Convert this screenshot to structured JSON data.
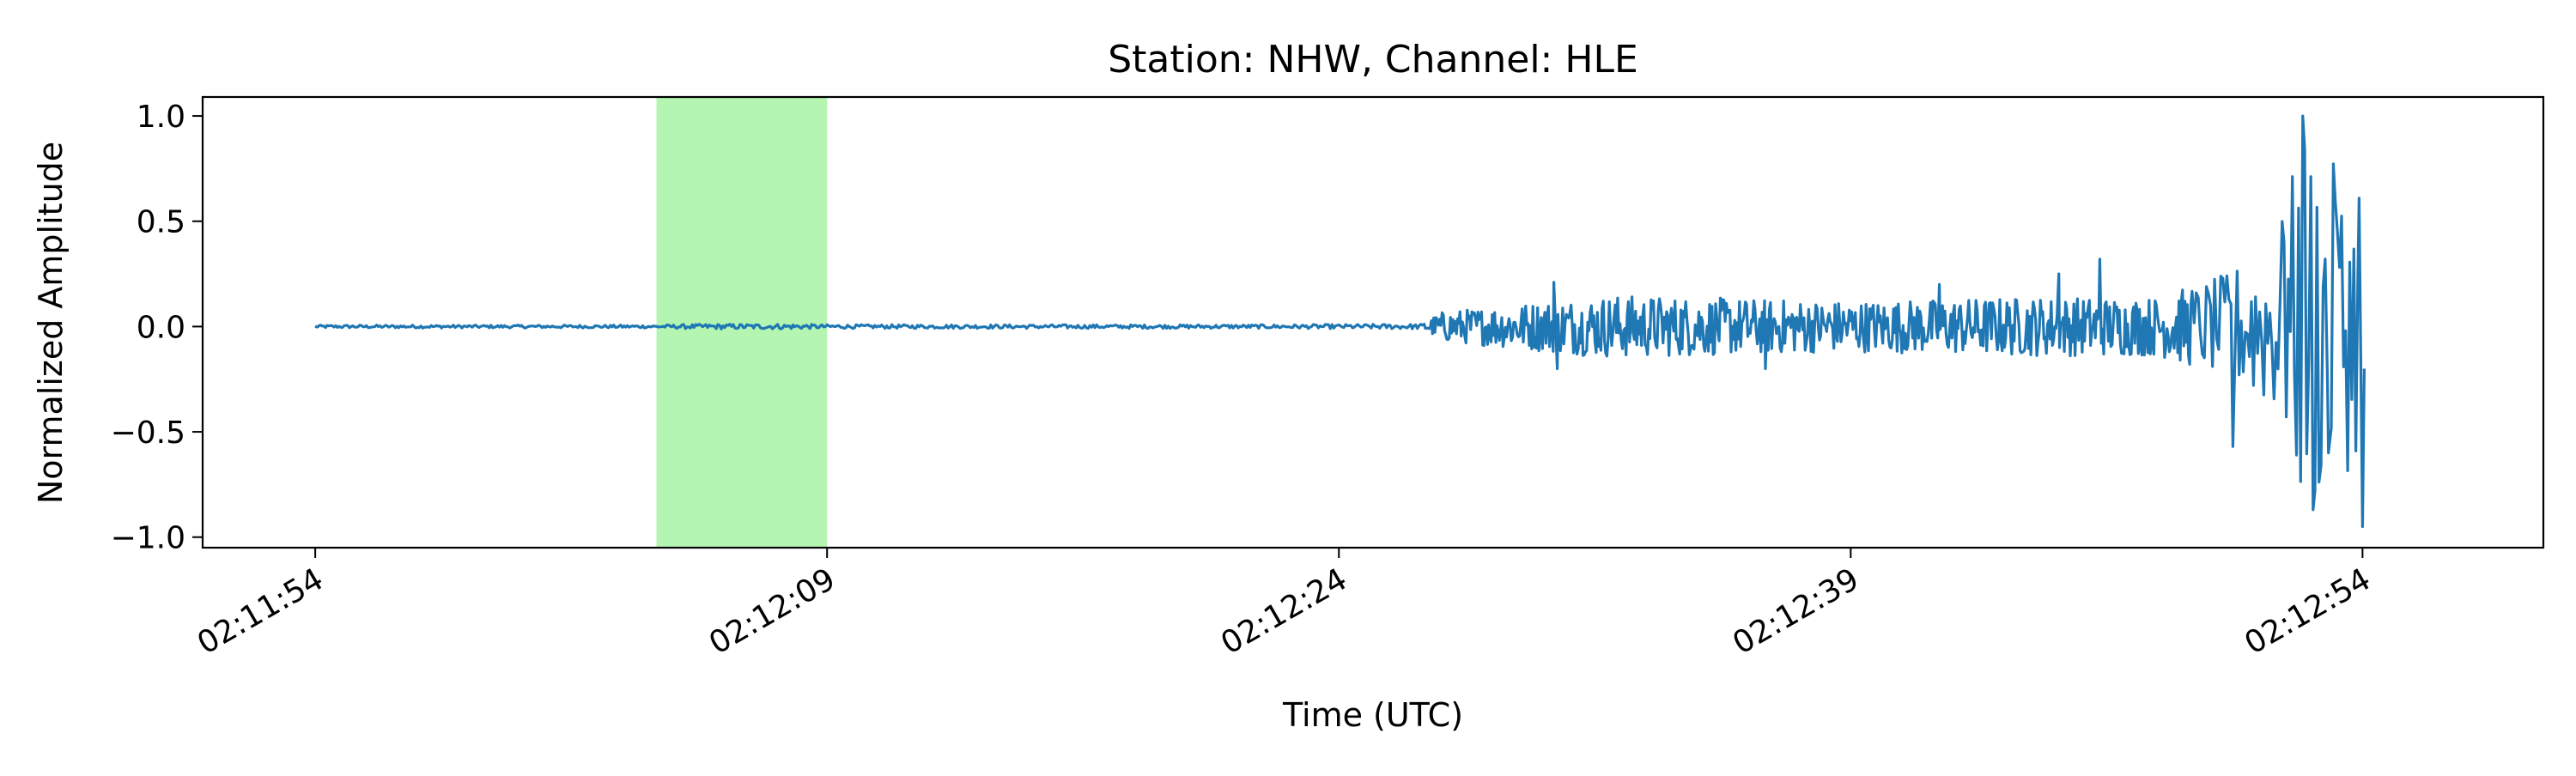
{
  "chart_data": {
    "type": "line",
    "title": "Station: NHW, Channel: HLE",
    "xlabel": "Time (UTC)",
    "ylabel": "Normalized Amplitude",
    "x_range_seconds": [
      -3.3,
      65.3
    ],
    "ylim": [
      -1.05,
      1.09
    ],
    "x_ticks": [
      {
        "t": 0,
        "label": "02:11:54"
      },
      {
        "t": 15,
        "label": "02:12:09"
      },
      {
        "t": 30,
        "label": "02:12:24"
      },
      {
        "t": 45,
        "label": "02:12:39"
      },
      {
        "t": 60,
        "label": "02:12:54"
      }
    ],
    "y_ticks": [
      {
        "v": 1.0,
        "label": "1.0"
      },
      {
        "v": 0.5,
        "label": "0.5"
      },
      {
        "v": 0.0,
        "label": "0.0"
      },
      {
        "v": -0.5,
        "label": "−0.5"
      },
      {
        "v": -1.0,
        "label": "−1.0"
      }
    ],
    "highlight_window": {
      "start": 10,
      "end": 15,
      "color": "#b3f5b1"
    },
    "grid": false,
    "legend": "none",
    "series": [
      {
        "color": "#1f77b4",
        "envelope": [
          {
            "t": 0,
            "amp": 0.012
          },
          {
            "t": 10,
            "amp": 0.012
          },
          {
            "t": 11.5,
            "amp": 0.02
          },
          {
            "t": 14,
            "amp": 0.02
          },
          {
            "t": 15,
            "amp": 0.015
          },
          {
            "t": 28,
            "amp": 0.015
          },
          {
            "t": 32.5,
            "amp": 0.02
          },
          {
            "t": 33,
            "amp": 0.07
          },
          {
            "t": 36,
            "amp": 0.12
          },
          {
            "t": 38,
            "amp": 0.15
          },
          {
            "t": 45,
            "amp": 0.12
          },
          {
            "t": 50,
            "amp": 0.14
          },
          {
            "t": 54,
            "amp": 0.14
          },
          {
            "t": 56,
            "amp": 0.25
          },
          {
            "t": 57.5,
            "amp": 0.45
          },
          {
            "t": 58.3,
            "amp": 0.95
          },
          {
            "t": 59.5,
            "amp": 0.7
          },
          {
            "t": 60,
            "amp": 0.6
          }
        ],
        "peaks": [
          {
            "t": 36.3,
            "v": 0.21
          },
          {
            "t": 36.4,
            "v": -0.2
          },
          {
            "t": 42.5,
            "v": -0.2
          },
          {
            "t": 47.6,
            "v": 0.2
          },
          {
            "t": 51.1,
            "v": 0.25
          },
          {
            "t": 52.3,
            "v": 0.32
          },
          {
            "t": 56.2,
            "v": -0.57
          },
          {
            "t": 57.7,
            "v": 0.4
          },
          {
            "t": 58.25,
            "v": 1.0
          },
          {
            "t": 58.55,
            "v": -0.87
          },
          {
            "t": 59.0,
            "v": -0.6
          },
          {
            "t": 59.2,
            "v": 0.6
          },
          {
            "t": 59.9,
            "v": 0.61
          },
          {
            "t": 60.0,
            "v": -0.95
          },
          {
            "t": 60.05,
            "v": -0.2
          }
        ]
      }
    ]
  }
}
